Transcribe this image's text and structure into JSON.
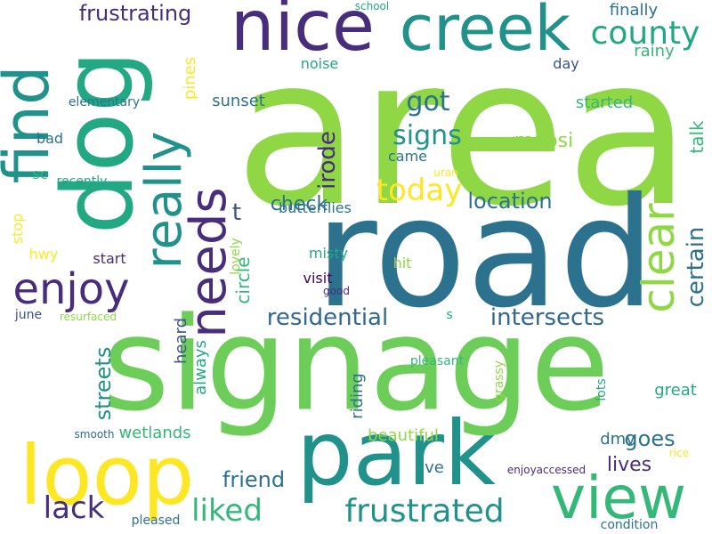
{
  "palette": {
    "background": "#ffffff",
    "lime": "#8fd744",
    "light_green": "#6ccd59",
    "yellow": "#fde725",
    "teal": "#21918c",
    "sea": "#23a884",
    "green": "#35b779",
    "blue": "#2c728e",
    "slate": "#3b528b",
    "indigo": "#472d7b",
    "purple": "#440154",
    "dark_blue": "#31688e"
  },
  "words": [
    {
      "text": "area",
      "color": "lime",
      "vertical": false
    },
    {
      "text": "road",
      "color": "blue",
      "vertical": false
    },
    {
      "text": "signage",
      "color": "light_green",
      "vertical": false
    },
    {
      "text": "dog",
      "color": "sea",
      "vertical": true
    },
    {
      "text": "nice",
      "color": "indigo",
      "vertical": false
    },
    {
      "text": "creek",
      "color": "teal",
      "vertical": false
    },
    {
      "text": "find",
      "color": "teal",
      "vertical": true
    },
    {
      "text": "park",
      "color": "teal",
      "vertical": false
    },
    {
      "text": "loop",
      "color": "yellow",
      "vertical": false
    },
    {
      "text": "view",
      "color": "green",
      "vertical": false
    },
    {
      "text": "needs",
      "color": "indigo",
      "vertical": true
    },
    {
      "text": "really",
      "color": "teal",
      "vertical": true
    },
    {
      "text": "enjoy",
      "color": "indigo",
      "vertical": false
    },
    {
      "text": "clear",
      "color": "lime",
      "vertical": true
    },
    {
      "text": "county",
      "color": "sea",
      "vertical": false
    },
    {
      "text": "frustrated",
      "color": "teal",
      "vertical": false
    },
    {
      "text": "lack",
      "color": "indigo",
      "vertical": false
    },
    {
      "text": "liked",
      "color": "green",
      "vertical": false
    },
    {
      "text": "frustrating",
      "color": "indigo",
      "vertical": false
    },
    {
      "text": "today",
      "color": "yellow",
      "vertical": false
    },
    {
      "text": "residential",
      "color": "dark_blue",
      "vertical": false
    },
    {
      "text": "intersects",
      "color": "dark_blue",
      "vertical": false
    },
    {
      "text": "signs",
      "color": "teal",
      "vertical": false
    },
    {
      "text": "got",
      "color": "blue",
      "vertical": false
    },
    {
      "text": "certain",
      "color": "blue",
      "vertical": true
    },
    {
      "text": "irode",
      "color": "indigo",
      "vertical": true
    },
    {
      "text": "location",
      "color": "blue",
      "vertical": false
    },
    {
      "text": "streets",
      "color": "teal",
      "vertical": true
    },
    {
      "text": "goes",
      "color": "blue",
      "vertical": false
    },
    {
      "text": "lives",
      "color": "indigo",
      "vertical": false
    },
    {
      "text": "friend",
      "color": "blue",
      "vertical": false
    },
    {
      "text": "check",
      "color": "blue",
      "vertical": false
    },
    {
      "text": "mapsi",
      "color": "lime",
      "vertical": false
    },
    {
      "text": "talk",
      "color": "green",
      "vertical": true
    },
    {
      "text": "circle",
      "color": "green",
      "vertical": true
    },
    {
      "text": "heard",
      "color": "slate",
      "vertical": true
    },
    {
      "text": "always",
      "color": "sea",
      "vertical": true
    },
    {
      "text": "riding",
      "color": "blue",
      "vertical": true
    },
    {
      "text": "wetlands",
      "color": "green",
      "vertical": false
    },
    {
      "text": "beautiful",
      "color": "lime",
      "vertical": false
    },
    {
      "text": "great",
      "color": "sea",
      "vertical": false
    },
    {
      "text": "dmv",
      "color": "blue",
      "vertical": false
    },
    {
      "text": "ve",
      "color": "blue",
      "vertical": false
    },
    {
      "text": "finally",
      "color": "blue",
      "vertical": false
    },
    {
      "text": "rainy",
      "color": "green",
      "vertical": false
    },
    {
      "text": "day",
      "color": "slate",
      "vertical": false
    },
    {
      "text": "started",
      "color": "green",
      "vertical": false
    },
    {
      "text": "noise",
      "color": "sea",
      "vertical": false
    },
    {
      "text": "sunset",
      "color": "blue",
      "vertical": false
    },
    {
      "text": "pines",
      "color": "yellow",
      "vertical": true
    },
    {
      "text": "came",
      "color": "blue",
      "vertical": false
    },
    {
      "text": "butterflies",
      "color": "blue",
      "vertical": false
    },
    {
      "text": "misty",
      "color": "sea",
      "vertical": false
    },
    {
      "text": "hit",
      "color": "lime",
      "vertical": false
    },
    {
      "text": "visit",
      "color": "purple",
      "vertical": false
    },
    {
      "text": "lovely",
      "color": "lime",
      "vertical": true
    },
    {
      "text": "start",
      "color": "indigo",
      "vertical": false
    },
    {
      "text": "hwy",
      "color": "yellow",
      "vertical": false
    },
    {
      "text": "stop",
      "color": "yellow",
      "vertical": true
    },
    {
      "text": "june",
      "color": "slate",
      "vertical": false
    },
    {
      "text": "bad",
      "color": "blue",
      "vertical": false
    },
    {
      "text": "sc",
      "color": "green",
      "vertical": false
    },
    {
      "text": "recently",
      "color": "sea",
      "vertical": false
    },
    {
      "text": "elementary",
      "color": "blue",
      "vertical": false
    },
    {
      "text": "resurfaced",
      "color": "lime",
      "vertical": false
    },
    {
      "text": "school",
      "color": "sea",
      "vertical": false
    },
    {
      "text": "uran",
      "color": "yellow",
      "vertical": false
    },
    {
      "text": "good",
      "color": "indigo",
      "vertical": false
    },
    {
      "text": "s",
      "color": "sea",
      "vertical": false
    },
    {
      "text": "pleasant",
      "color": "green",
      "vertical": false
    },
    {
      "text": "grassy",
      "color": "lime",
      "vertical": true
    },
    {
      "text": "lots",
      "color": "sea",
      "vertical": true
    },
    {
      "text": "smooth",
      "color": "dark_blue",
      "vertical": false
    },
    {
      "text": "enjoyaccessed",
      "color": "indigo",
      "vertical": false
    },
    {
      "text": "rice",
      "color": "yellow",
      "vertical": false
    },
    {
      "text": "pleased",
      "color": "blue",
      "vertical": false
    },
    {
      "text": "condition",
      "color": "blue",
      "vertical": false
    },
    {
      "text": "t",
      "color": "slate",
      "vertical": false
    }
  ]
}
